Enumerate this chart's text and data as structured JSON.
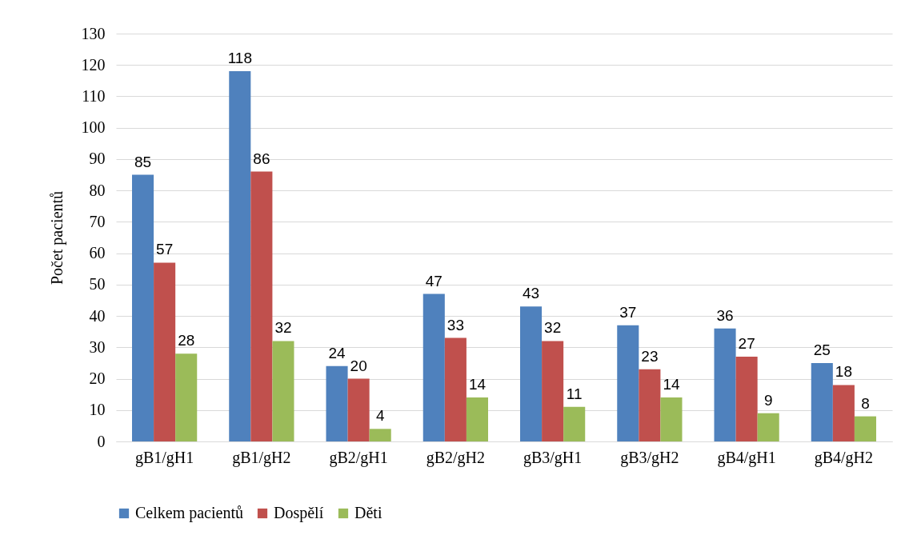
{
  "chart_data": {
    "type": "bar",
    "ylabel": "Počet pacientů",
    "categories": [
      "gB1/gH1",
      "gB1/gH2",
      "gB2/gH1",
      "gB2/gH2",
      "gB3/gH1",
      "gB3/gH2",
      "gB4/gH1",
      "gB4/gH2"
    ],
    "series": [
      {
        "name": "Celkem pacientů",
        "color": "#4f81bd",
        "values": [
          85,
          118,
          24,
          47,
          43,
          37,
          36,
          25
        ]
      },
      {
        "name": "Dospělí",
        "color": "#c0504d",
        "values": [
          57,
          86,
          20,
          33,
          32,
          23,
          27,
          18
        ]
      },
      {
        "name": "Děti",
        "color": "#9bbb59",
        "values": [
          28,
          32,
          4,
          14,
          11,
          14,
          9,
          8
        ]
      }
    ],
    "ylim": [
      0,
      130
    ],
    "yticks": [
      0,
      10,
      20,
      30,
      40,
      50,
      60,
      70,
      80,
      90,
      100,
      110,
      120,
      130
    ],
    "grid": "y",
    "legend": "bottom",
    "data_labels": true
  }
}
